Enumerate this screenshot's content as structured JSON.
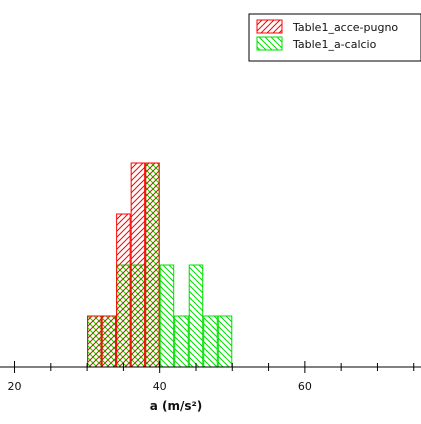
{
  "chart_data": {
    "type": "bar",
    "xlabel": "a (m/s²)",
    "ylabel": "",
    "xlim": [
      18,
      76
    ],
    "ylim": [
      0,
      5
    ],
    "x_ticks": [
      "20",
      "40",
      "60"
    ],
    "grid": false,
    "legend_position": "top-right",
    "series": [
      {
        "name": "Table1_acce-pugno",
        "color": "#ff0000",
        "hatch": "forward-diagonal",
        "bins": [
          {
            "x0": 30,
            "x1": 32,
            "value": 1
          },
          {
            "x0": 32,
            "x1": 34,
            "value": 1
          },
          {
            "x0": 34,
            "x1": 36,
            "value": 3
          },
          {
            "x0": 36,
            "x1": 38,
            "value": 4
          },
          {
            "x0": 38,
            "x1": 40,
            "value": 4
          }
        ]
      },
      {
        "name": "Table1_a-calcio",
        "color": "#00dd00",
        "hatch": "back-diagonal",
        "bins": [
          {
            "x0": 30,
            "x1": 32,
            "value": 1
          },
          {
            "x0": 32,
            "x1": 34,
            "value": 1
          },
          {
            "x0": 34,
            "x1": 36,
            "value": 2
          },
          {
            "x0": 36,
            "x1": 38,
            "value": 2
          },
          {
            "x0": 38,
            "x1": 40,
            "value": 4
          },
          {
            "x0": 40,
            "x1": 42,
            "value": 2
          },
          {
            "x0": 42,
            "x1": 44,
            "value": 1
          },
          {
            "x0": 44,
            "x1": 46,
            "value": 2
          },
          {
            "x0": 46,
            "x1": 48,
            "value": 1
          },
          {
            "x0": 48,
            "x1": 50,
            "value": 1
          }
        ]
      }
    ]
  }
}
